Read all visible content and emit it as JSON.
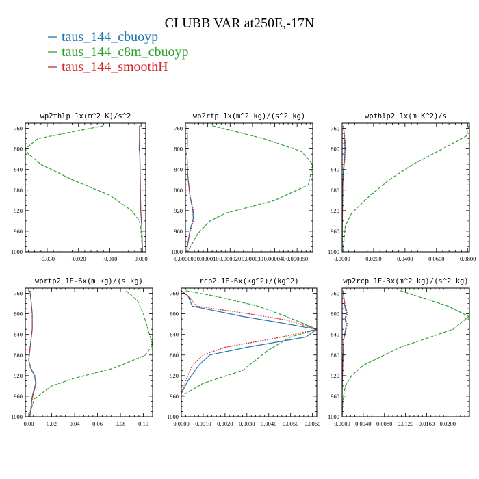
{
  "figure": {
    "title": "CLUBB VAR at250E,-17N",
    "legend": [
      {
        "label": "taus_144_cbuoyp",
        "color": "#1f77b4"
      },
      {
        "label": "taus_144_c8m_cbuoyp",
        "color": "#2ca02c"
      },
      {
        "label": "taus_144_smoothH",
        "color": "#d62728"
      }
    ]
  },
  "chart_data": [
    {
      "type": "line",
      "title": "wp2thlp  1x(m^2 K)/s^2",
      "xlim": [
        -0.037,
        0.0015
      ],
      "ylim": [
        750,
        1000
      ],
      "xticks": [
        -0.03,
        -0.02,
        -0.01,
        0.0
      ],
      "xtick_labels": [
        "-0.030",
        "-0.020",
        "-0.010",
        "0.000"
      ],
      "yticks": [
        760,
        800,
        840,
        880,
        920,
        960,
        1000
      ],
      "series": [
        {
          "name": "taus_144_cbuoyp",
          "x": [
            -0.0005,
            -0.0005,
            -0.0006,
            -0.0004,
            -0.0003,
            -0.0002,
            -0.0001,
            0.0002,
            0.0004,
            0.0005
          ],
          "y": [
            755,
            780,
            800,
            810,
            840,
            880,
            920,
            950,
            985,
            1000
          ]
        },
        {
          "name": "taus_144_c8m_cbuoyp",
          "x": [
            -0.012,
            -0.033,
            -0.037,
            -0.036,
            -0.032,
            -0.022,
            -0.01,
            -0.003,
            -0.0005,
            0.0,
            0.0003,
            0.0005
          ],
          "y": [
            755,
            780,
            800,
            810,
            830,
            860,
            890,
            920,
            940,
            960,
            985,
            1000
          ]
        },
        {
          "name": "taus_144_smoothH",
          "x": [
            -0.0005,
            -0.0005,
            -0.0005,
            -0.0004,
            -0.0003,
            -0.0002,
            -0.0001,
            0.0002,
            0.0004,
            0.0005
          ],
          "y": [
            755,
            780,
            800,
            810,
            840,
            880,
            920,
            950,
            985,
            1000
          ]
        }
      ]
    },
    {
      "type": "line",
      "title": "wp2rtp  1x(m^2 kg)/(s^2 kg)",
      "xlim": [
        0.0,
        5.7e-05
      ],
      "ylim": [
        750,
        1000
      ],
      "xticks": [
        0.0,
        1e-05,
        2e-05,
        3e-05,
        4e-05,
        5e-05
      ],
      "xtick_labels": [
        "0.000000",
        "0.000010",
        "0.000020",
        "0.000030",
        "0.000040",
        "0.000050"
      ],
      "yticks": [
        760,
        800,
        840,
        880,
        920,
        960,
        1000
      ],
      "series": [
        {
          "name": "taus_144_cbuoyp",
          "x": [
            7e-07,
            9e-07,
            7e-07,
            1e-06,
            2e-06,
            3.3e-06,
            3.5e-06,
            2e-06,
            1e-06,
            5e-07
          ],
          "y": [
            755,
            780,
            810,
            850,
            890,
            920,
            935,
            960,
            985,
            1000
          ]
        },
        {
          "name": "taus_144_c8m_cbuoyp",
          "x": [
            1.2e-05,
            3.5e-05,
            5.2e-05,
            5.7e-05,
            5.5e-05,
            4e-05,
            1.8e-05,
            1.1e-05,
            5.5e-06,
            1e-06
          ],
          "y": [
            755,
            780,
            805,
            830,
            870,
            900,
            925,
            940,
            965,
            1000
          ]
        },
        {
          "name": "taus_144_smoothH",
          "x": [
            7e-07,
            9e-07,
            7e-07,
            1e-06,
            2e-06,
            3.6e-06,
            3.9e-06,
            2.2e-06,
            1e-06,
            5e-07
          ],
          "y": [
            755,
            780,
            810,
            850,
            890,
            920,
            935,
            960,
            985,
            1000
          ]
        }
      ]
    },
    {
      "type": "line",
      "title": "wpthlp2  1x(m K^2)/s",
      "xlim": [
        0.0,
        0.081
      ],
      "ylim": [
        750,
        1000
      ],
      "xticks": [
        0.0,
        0.02,
        0.04,
        0.06,
        0.08
      ],
      "xtick_labels": [
        "0.0000",
        "0.0200",
        "0.0400",
        "0.0600",
        "0.0800"
      ],
      "yticks": [
        760,
        800,
        840,
        880,
        920,
        960,
        1000
      ],
      "series": [
        {
          "name": "taus_144_cbuoyp",
          "x": [
            0.0008,
            0.0012,
            0.0018,
            0.0015,
            0.0008,
            0.0004,
            0.0002,
            0.0001,
            0.0
          ],
          "y": [
            755,
            770,
            800,
            820,
            840,
            870,
            920,
            960,
            1000
          ]
        },
        {
          "name": "taus_144_c8m_cbuoyp",
          "x": [
            0.0805,
            0.079,
            0.07,
            0.045,
            0.03,
            0.018,
            0.006,
            0.002,
            0.0005
          ],
          "y": [
            755,
            775,
            790,
            830,
            860,
            890,
            925,
            950,
            1000
          ]
        },
        {
          "name": "taus_144_smoothH",
          "x": [
            0.0008,
            0.0015,
            0.0022,
            0.0018,
            0.0009,
            0.0004,
            0.0002,
            0.0001,
            0.0
          ],
          "y": [
            755,
            770,
            800,
            820,
            840,
            870,
            920,
            960,
            1000
          ]
        }
      ]
    },
    {
      "type": "line",
      "title": "wprtp2  1E-6x(m kg)/(s kg)",
      "xlim": [
        -0.003,
        0.108
      ],
      "ylim": [
        750,
        1000
      ],
      "xticks": [
        0.0,
        0.02,
        0.04,
        0.06,
        0.08,
        0.1
      ],
      "xtick_labels": [
        "0.00",
        "0.02",
        "0.04",
        "0.06",
        "0.08",
        "0.10"
      ],
      "yticks": [
        760,
        800,
        840,
        880,
        920,
        960,
        1000
      ],
      "series": [
        {
          "name": "taus_144_cbuoyp",
          "x": [
            0.001,
            0.002,
            0.003,
            0.003,
            0.002,
            0.001,
            0.0,
            0.0015,
            0.005,
            0.006,
            0.003,
            0.001
          ],
          "y": [
            755,
            775,
            800,
            830,
            850,
            870,
            890,
            905,
            920,
            935,
            960,
            1000
          ]
        },
        {
          "name": "taus_144_c8m_cbuoyp",
          "x": [
            0.085,
            0.095,
            0.1,
            0.104,
            0.108,
            0.102,
            0.075,
            0.04,
            0.02,
            0.005,
            0.0
          ],
          "y": [
            755,
            775,
            800,
            830,
            860,
            880,
            905,
            925,
            940,
            965,
            1000
          ]
        },
        {
          "name": "taus_144_smoothH",
          "x": [
            0.001,
            0.002,
            0.003,
            0.003,
            0.002,
            0.001,
            0.0,
            0.002,
            0.0055,
            0.0065,
            0.0035,
            0.001
          ],
          "y": [
            755,
            775,
            800,
            830,
            850,
            870,
            890,
            905,
            920,
            935,
            960,
            1000
          ]
        }
      ]
    },
    {
      "type": "line",
      "title": "rcp2  1E-6x(kg^2)/(kg^2)",
      "xlim": [
        0.0,
        0.0062
      ],
      "ylim": [
        750,
        1000
      ],
      "xticks": [
        0.0,
        0.001,
        0.002,
        0.003,
        0.004,
        0.005,
        0.006
      ],
      "xtick_labels": [
        "0.0000",
        "0.0010",
        "0.0020",
        "0.0030",
        "0.0040",
        "0.0050",
        "0.0060"
      ],
      "yticks": [
        760,
        800,
        840,
        880,
        920,
        960,
        1000
      ],
      "series": [
        {
          "name": "taus_144_cbuoyp",
          "x": [
            0.0,
            0.0003,
            0.0005,
            0.0028,
            0.0042,
            0.0062,
            0.0057,
            0.003,
            0.0013,
            0.0008,
            0.0003,
            0.0
          ],
          "y": [
            755,
            765,
            785,
            805,
            815,
            830,
            845,
            865,
            880,
            900,
            930,
            955
          ]
        },
        {
          "name": "taus_144_c8m_cbuoyp",
          "x": [
            0.0002,
            0.0015,
            0.0035,
            0.0048,
            0.0062,
            0.005,
            0.004,
            0.0028,
            0.001,
            0.0002,
            0.0
          ],
          "y": [
            755,
            765,
            785,
            805,
            830,
            845,
            870,
            910,
            935,
            955,
            960
          ]
        },
        {
          "name": "taus_144_smoothH",
          "x": [
            0.0,
            0.0003,
            0.0007,
            0.0031,
            0.0048,
            0.0062,
            0.0046,
            0.002,
            0.001,
            0.0005,
            0.0002,
            0.0
          ],
          "y": [
            755,
            765,
            785,
            800,
            812,
            830,
            845,
            865,
            880,
            900,
            930,
            955
          ]
        }
      ]
    },
    {
      "type": "line",
      "title": "wp2rcp  1E-3x(m^2 kg)/(s^2 kg)",
      "xlim": [
        0.0,
        0.0241
      ],
      "ylim": [
        750,
        1000
      ],
      "xticks": [
        0.0,
        0.004,
        0.008,
        0.012,
        0.016,
        0.02
      ],
      "xtick_labels": [
        "0.0000",
        "0.0040",
        "0.0080",
        "0.0120",
        "0.0160",
        "0.0200"
      ],
      "yticks": [
        760,
        800,
        840,
        880,
        920,
        960,
        1000
      ],
      "series": [
        {
          "name": "taus_144_cbuoyp",
          "x": [
            0.0002,
            0.0004,
            0.0008,
            0.0005,
            0.0008,
            0.0003,
            0.0001,
            0.0,
            0.0
          ],
          "y": [
            755,
            780,
            800,
            810,
            820,
            850,
            900,
            950,
            1000
          ]
        },
        {
          "name": "taus_144_c8m_cbuoyp",
          "x": [
            0.011,
            0.02,
            0.024,
            0.021,
            0.011,
            0.004,
            0.0018,
            0.0006,
            0.0001,
            0.0
          ],
          "y": [
            755,
            785,
            805,
            830,
            865,
            900,
            920,
            940,
            970,
            1000
          ]
        },
        {
          "name": "taus_144_smoothH",
          "x": [
            0.0002,
            0.0005,
            0.001,
            0.0006,
            0.001,
            0.0003,
            0.0001,
            0.0,
            0.0
          ],
          "y": [
            755,
            780,
            800,
            810,
            820,
            850,
            900,
            950,
            1000
          ]
        }
      ]
    }
  ]
}
